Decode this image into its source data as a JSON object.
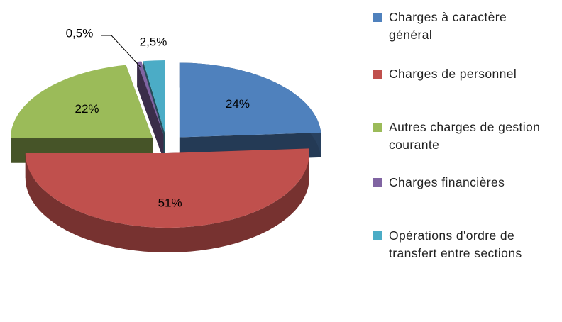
{
  "chart_data": {
    "type": "pie",
    "categories": [
      "Charges à caractère général",
      "Charges de personnel",
      "Autres charges de gestion courante",
      "Charges financières",
      "Opérations d'ordre de transfert entre sections"
    ],
    "values": [
      24,
      51,
      22,
      0.5,
      2.5
    ],
    "value_labels": [
      "24%",
      "51%",
      "22%",
      "0,5%",
      "2,5%"
    ],
    "colors": [
      "#4f81bd",
      "#c0504d",
      "#9bbb59",
      "#8064a2",
      "#4bacc6"
    ],
    "legend": "right"
  }
}
